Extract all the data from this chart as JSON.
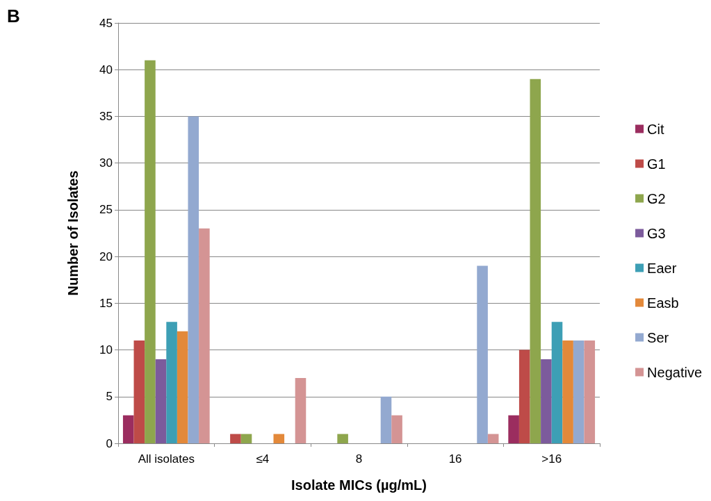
{
  "chart_data": {
    "type": "bar",
    "xlabel": "Isolate MICs (µg/mL)",
    "ylabel": "Number of Isolates",
    "annotations": [
      "B"
    ],
    "categories": [
      "All isolates",
      "≤4",
      "8",
      "16",
      ">16"
    ],
    "series": [
      {
        "name": "Cit",
        "color": "#9b2d5f",
        "values": [
          3,
          0,
          0,
          0,
          3
        ]
      },
      {
        "name": "G1",
        "color": "#be4b48",
        "values": [
          11,
          1,
          0,
          0,
          10
        ]
      },
      {
        "name": "G2",
        "color": "#8ea64d",
        "values": [
          41,
          1,
          1,
          0,
          39
        ]
      },
      {
        "name": "G3",
        "color": "#7c5b9c",
        "values": [
          9,
          0,
          0,
          0,
          9
        ]
      },
      {
        "name": "Eaer",
        "color": "#3d9fb5",
        "values": [
          13,
          0,
          0,
          0,
          13
        ]
      },
      {
        "name": "Easb",
        "color": "#e3893a",
        "values": [
          12,
          1,
          0,
          0,
          11
        ]
      },
      {
        "name": "Ser",
        "color": "#93a9d0",
        "values": [
          35,
          0,
          5,
          19,
          11
        ]
      },
      {
        "name": "Negative",
        "color": "#d49494",
        "values": [
          23,
          7,
          3,
          1,
          11
        ]
      }
    ],
    "ylim": [
      0,
      45
    ],
    "yticks": [
      0,
      5,
      10,
      15,
      20,
      25,
      30,
      35,
      40,
      45
    ],
    "grid": "y",
    "legend": "right"
  }
}
